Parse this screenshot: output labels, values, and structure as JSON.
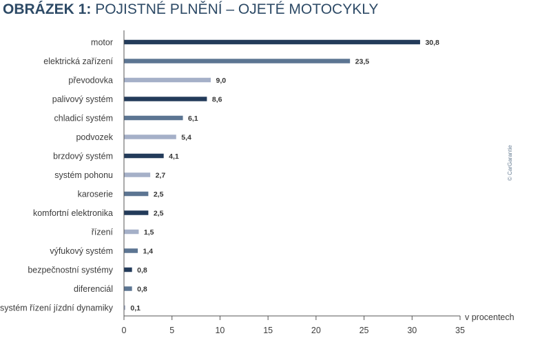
{
  "header": {
    "title_bold": "OBRÁZEK 1:",
    "title_rest": "POJISTNÉ PLNĚNÍ – OJETÉ MOTOCYKLY"
  },
  "colors": {
    "title": "#2d4a66",
    "dark": "#233b5a",
    "mid": "#5c7592",
    "light": "#a5b0c8",
    "axis": "#555555"
  },
  "chart_data": {
    "type": "bar",
    "orientation": "horizontal",
    "categories": [
      "motor",
      "elektrická zařízení",
      "převodovka",
      "palivový systém",
      "chladicí systém",
      "podvozek",
      "brzdový systém",
      "systém pohonu",
      "karoserie",
      "komfortní elektronika",
      "řízení",
      "výfukový systém",
      "bezpečnostní systémy",
      "diferenciál",
      "systém řízení jízdní dynamiky"
    ],
    "values": [
      30.8,
      23.5,
      9.0,
      8.6,
      6.1,
      5.4,
      4.1,
      2.7,
      2.5,
      2.5,
      1.5,
      1.4,
      0.8,
      0.8,
      0.1
    ],
    "value_labels": [
      "30,8",
      "23,5",
      "9,0",
      "8,6",
      "6,1",
      "5,4",
      "4,1",
      "2,7",
      "2,5",
      "2,5",
      "1,5",
      "1,4",
      "0,8",
      "0,8",
      "0,1"
    ],
    "bar_colors": [
      "dark",
      "mid",
      "light",
      "dark",
      "mid",
      "light",
      "dark",
      "light",
      "mid",
      "dark",
      "light",
      "mid",
      "dark",
      "mid",
      "light"
    ],
    "xlim": [
      0,
      35
    ],
    "xticks": [
      0,
      5,
      10,
      15,
      20,
      25,
      30,
      35
    ],
    "xlabel": "v procentech",
    "grid": false,
    "source_note": "© CarGarantie"
  }
}
